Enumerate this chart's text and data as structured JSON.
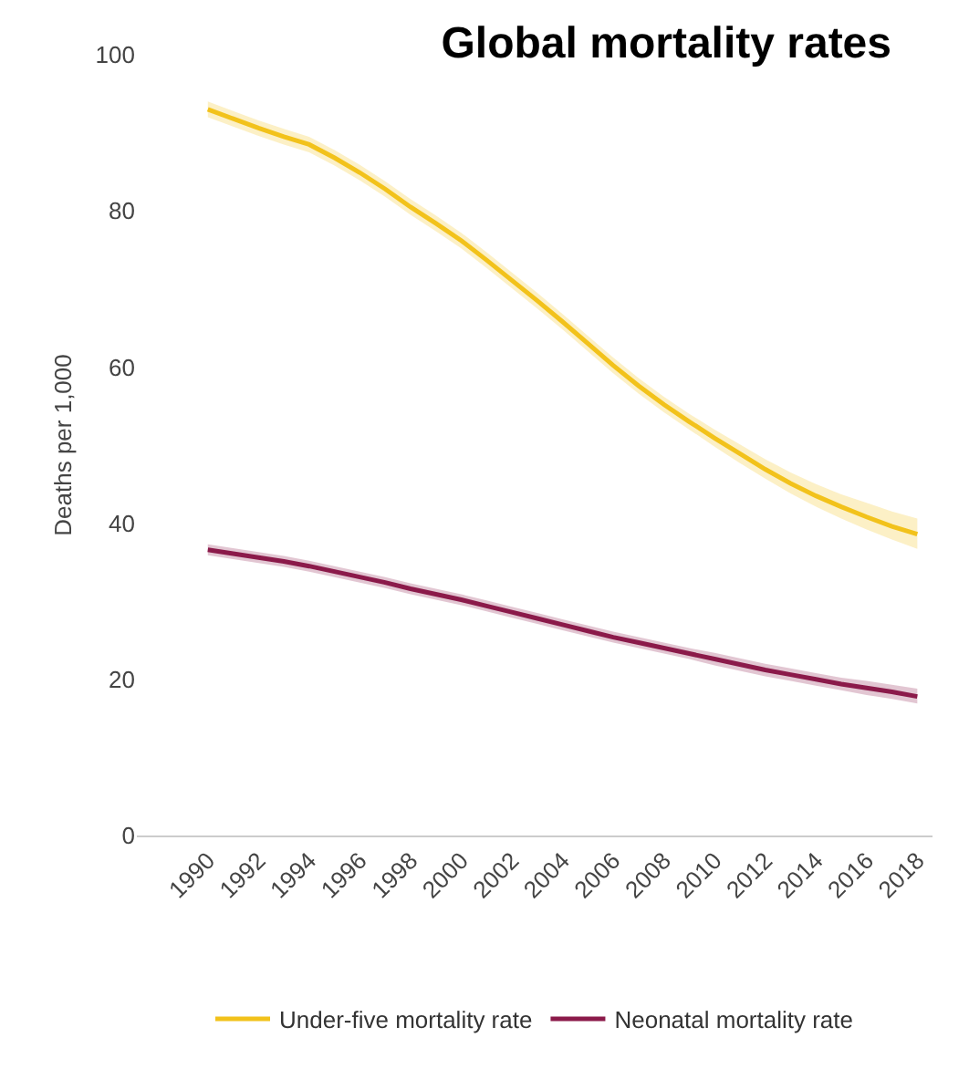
{
  "chart_data": {
    "type": "line",
    "title": "Global mortality rates",
    "ylabel": "Deaths per 1,000",
    "x": [
      1990,
      1991,
      1992,
      1993,
      1994,
      1995,
      1996,
      1997,
      1998,
      1999,
      2000,
      2001,
      2002,
      2003,
      2004,
      2005,
      2006,
      2007,
      2008,
      2009,
      2010,
      2011,
      2012,
      2013,
      2014,
      2015,
      2016,
      2017,
      2018
    ],
    "xlim": [
      1987.2,
      2018.6
    ],
    "xticks": [
      1990,
      1992,
      1994,
      1996,
      1998,
      2000,
      2002,
      2004,
      2006,
      2008,
      2010,
      2012,
      2014,
      2016,
      2018
    ],
    "ylim": [
      0,
      100
    ],
    "yticks": [
      0,
      20,
      40,
      60,
      80,
      100
    ],
    "grid": false,
    "legend": "bottom",
    "series": [
      {
        "name": "Neonatal mortality rate",
        "color": "#8b1a4a",
        "values": [
          36.6,
          36.1,
          35.6,
          35.1,
          34.5,
          33.8,
          33.1,
          32.4,
          31.6,
          30.9,
          30.2,
          29.4,
          28.6,
          27.8,
          27.0,
          26.2,
          25.4,
          24.7,
          24.0,
          23.3,
          22.6,
          21.9,
          21.2,
          20.6,
          20.0,
          19.4,
          18.9,
          18.4,
          17.8
        ],
        "lower": [
          35.9,
          35.4,
          34.9,
          34.4,
          33.8,
          33.1,
          32.4,
          31.7,
          30.9,
          30.2,
          29.5,
          28.7,
          27.9,
          27.1,
          26.3,
          25.5,
          24.7,
          24.0,
          23.3,
          22.6,
          21.8,
          21.1,
          20.4,
          19.8,
          19.2,
          18.6,
          18.0,
          17.5,
          16.9
        ],
        "upper": [
          37.3,
          36.8,
          36.3,
          35.8,
          35.2,
          34.5,
          33.8,
          33.1,
          32.3,
          31.6,
          30.9,
          30.1,
          29.3,
          28.5,
          27.7,
          26.9,
          26.1,
          25.4,
          24.7,
          24.0,
          23.4,
          22.7,
          22.0,
          21.4,
          20.8,
          20.2,
          19.8,
          19.3,
          18.8
        ]
      },
      {
        "name": "Under-five mortality rate",
        "color": "#f2c21b",
        "values": [
          93.0,
          91.8,
          90.6,
          89.5,
          88.5,
          86.8,
          84.9,
          82.8,
          80.5,
          78.4,
          76.2,
          73.7,
          71.1,
          68.5,
          65.8,
          63.0,
          60.2,
          57.6,
          55.2,
          53.0,
          50.9,
          48.9,
          46.9,
          45.1,
          43.5,
          42.1,
          40.8,
          39.6,
          38.6
        ],
        "lower": [
          92.0,
          90.8,
          89.6,
          88.5,
          87.5,
          85.8,
          83.9,
          81.8,
          79.5,
          77.4,
          75.2,
          72.7,
          70.1,
          67.5,
          64.8,
          62.0,
          59.2,
          56.6,
          54.2,
          52.0,
          49.8,
          47.7,
          45.7,
          43.8,
          42.1,
          40.6,
          39.2,
          37.9,
          36.7
        ],
        "upper": [
          94.0,
          92.8,
          91.6,
          90.5,
          89.5,
          87.8,
          85.9,
          83.8,
          81.5,
          79.4,
          77.2,
          74.7,
          72.1,
          69.5,
          66.8,
          64.0,
          61.2,
          58.6,
          56.2,
          54.0,
          52.0,
          50.1,
          48.2,
          46.5,
          45.0,
          43.7,
          42.6,
          41.5,
          40.6
        ]
      }
    ]
  }
}
